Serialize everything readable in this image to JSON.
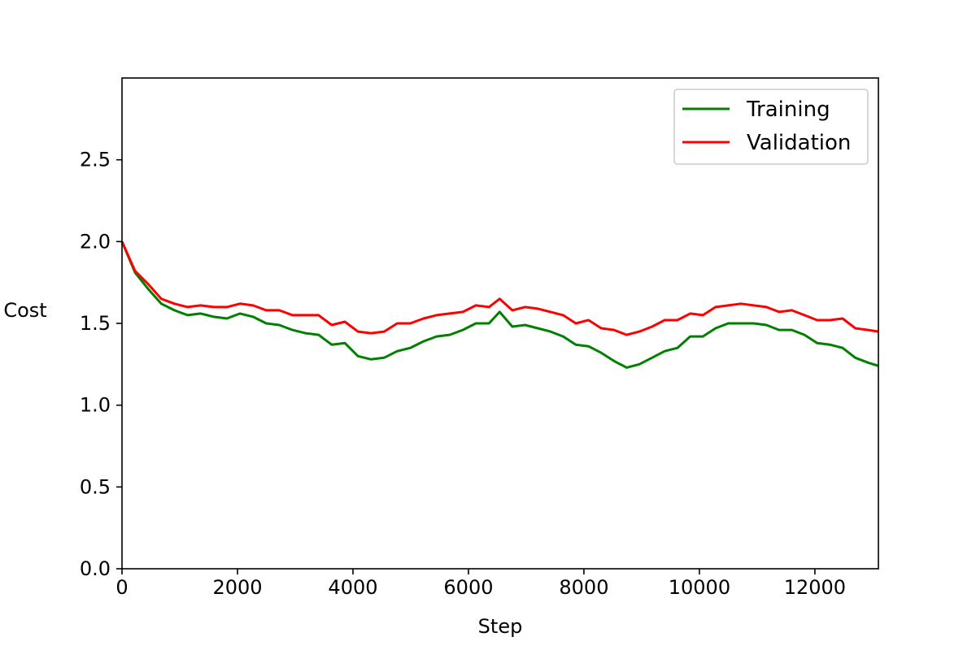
{
  "chart_data": {
    "type": "line",
    "title": "",
    "xlabel": "Step",
    "ylabel": "Cost",
    "xlim": [
      0,
      13100
    ],
    "ylim": [
      0,
      3.0
    ],
    "xticks": [
      0,
      2000,
      4000,
      6000,
      8000,
      10000,
      12000
    ],
    "xtick_labels": [
      "0",
      "2000",
      "4000",
      "6000",
      "8000",
      "10000",
      "12000"
    ],
    "yticks": [
      0.0,
      0.5,
      1.0,
      1.5,
      2.0,
      2.5
    ],
    "ytick_labels": [
      "0.0",
      "0.5",
      "1.0",
      "1.5",
      "2.0",
      "2.5"
    ],
    "grid": false,
    "legend": "top-right",
    "x": [
      0,
      227,
      454,
      681,
      908,
      1135,
      1362,
      1589,
      1816,
      2043,
      2270,
      2497,
      2724,
      2951,
      3178,
      3405,
      3632,
      3859,
      4086,
      4313,
      4540,
      4767,
      4994,
      5221,
      5448,
      5675,
      5902,
      6129,
      6356,
      6540,
      6760,
      6980,
      7200,
      7420,
      7640,
      7860,
      8080,
      8300,
      8520,
      8740,
      8960,
      9180,
      9400,
      9620,
      9840,
      10060,
      10280,
      10500,
      10720,
      10940,
      11160,
      11380,
      11600,
      11820,
      12040,
      12260,
      12480,
      12700,
      12920,
      13100
    ],
    "series": [
      {
        "name": "Training",
        "color": "#008000",
        "values": [
          2.0,
          1.81,
          1.71,
          1.62,
          1.58,
          1.55,
          1.56,
          1.54,
          1.53,
          1.56,
          1.54,
          1.5,
          1.49,
          1.46,
          1.44,
          1.43,
          1.37,
          1.38,
          1.3,
          1.28,
          1.29,
          1.33,
          1.35,
          1.39,
          1.42,
          1.43,
          1.46,
          1.5,
          1.5,
          1.57,
          1.48,
          1.49,
          1.47,
          1.45,
          1.42,
          1.37,
          1.36,
          1.32,
          1.27,
          1.23,
          1.25,
          1.29,
          1.33,
          1.35,
          1.42,
          1.42,
          1.47,
          1.5,
          1.5,
          1.5,
          1.49,
          1.46,
          1.46,
          1.43,
          1.38,
          1.37,
          1.35,
          1.29,
          1.26,
          1.24
        ]
      },
      {
        "name": "Validation",
        "color": "#ff0000",
        "values": [
          2.0,
          1.82,
          1.74,
          1.65,
          1.62,
          1.6,
          1.61,
          1.6,
          1.6,
          1.62,
          1.61,
          1.58,
          1.58,
          1.55,
          1.55,
          1.55,
          1.49,
          1.51,
          1.45,
          1.44,
          1.45,
          1.5,
          1.5,
          1.53,
          1.55,
          1.56,
          1.57,
          1.61,
          1.6,
          1.65,
          1.58,
          1.6,
          1.59,
          1.57,
          1.55,
          1.5,
          1.52,
          1.47,
          1.46,
          1.43,
          1.45,
          1.48,
          1.52,
          1.52,
          1.56,
          1.55,
          1.6,
          1.61,
          1.62,
          1.61,
          1.6,
          1.57,
          1.58,
          1.55,
          1.52,
          1.52,
          1.53,
          1.47,
          1.46,
          1.45
        ]
      }
    ]
  }
}
